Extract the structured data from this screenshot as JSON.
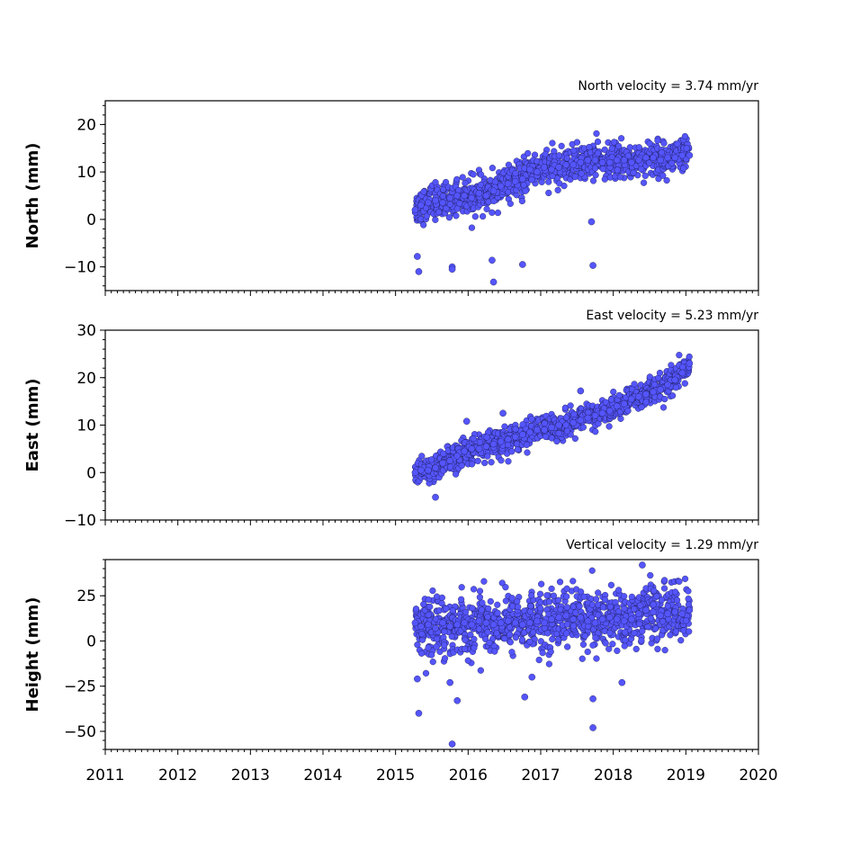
{
  "chart_data": [
    {
      "type": "scatter",
      "title": "North velocity = 3.74 mm/yr",
      "ylabel": "North (mm)",
      "ylim": [
        -15,
        25
      ],
      "xlim": [
        2011,
        2020
      ],
      "yticks": [
        -10,
        0,
        10,
        20
      ],
      "velocity_mm_per_yr": 3.74,
      "color": "#5555ff",
      "series": [
        {
          "x": [
            2015.27,
            2015.35,
            2015.45,
            2015.55,
            2015.65,
            2015.75,
            2015.85,
            2015.95,
            2016.05,
            2016.15,
            2016.25,
            2016.35,
            2016.45,
            2016.55,
            2016.65,
            2016.75,
            2016.85,
            2016.95,
            2017.05,
            2017.15,
            2017.25,
            2017.35,
            2017.45,
            2017.55,
            2017.65,
            2017.75,
            2017.85,
            2017.95,
            2018.05,
            2018.15,
            2018.25,
            2018.35,
            2018.45,
            2018.55,
            2018.65,
            2018.75,
            2018.85,
            2018.95,
            2019.05,
            2015.3,
            2015.32,
            2015.78,
            2015.78,
            2016.33,
            2016.35,
            2016.75,
            2017.7,
            2017.72
          ],
          "y": [
            2.0,
            3.0,
            3.5,
            4.0,
            3.5,
            4.5,
            5.0,
            5.0,
            4.5,
            5.5,
            5.0,
            6.0,
            7.0,
            7.5,
            8.0,
            8.5,
            10.5,
            10.0,
            11.0,
            10.5,
            11.0,
            11.5,
            11.5,
            12.0,
            12.5,
            12.5,
            12.0,
            12.0,
            12.5,
            12.5,
            12.0,
            12.5,
            13.0,
            13.0,
            12.5,
            13.0,
            13.0,
            13.5,
            13.5,
            -7.8,
            -11.0,
            -10.0,
            -10.5,
            -8.6,
            -13.2,
            -9.5,
            -0.5,
            -9.7
          ]
        }
      ]
    },
    {
      "type": "scatter",
      "title": "East velocity = 5.23 mm/yr",
      "ylabel": "East (mm)",
      "ylim": [
        -10,
        30
      ],
      "xlim": [
        2011,
        2020
      ],
      "yticks": [
        -10,
        0,
        10,
        20,
        30
      ],
      "velocity_mm_per_yr": 5.23,
      "color": "#5555ff",
      "series": [
        {
          "x": [
            2015.27,
            2015.35,
            2015.45,
            2015.55,
            2015.65,
            2015.75,
            2015.85,
            2015.95,
            2016.05,
            2016.15,
            2016.25,
            2016.35,
            2016.45,
            2016.55,
            2016.65,
            2016.75,
            2016.85,
            2016.95,
            2017.05,
            2017.15,
            2017.25,
            2017.35,
            2017.45,
            2017.55,
            2017.65,
            2017.75,
            2017.85,
            2017.95,
            2018.05,
            2018.15,
            2018.25,
            2018.35,
            2018.45,
            2018.55,
            2018.65,
            2018.75,
            2018.85,
            2018.95,
            2019.05,
            2015.55,
            2015.98,
            2016.48,
            2017.55
          ],
          "y": [
            0.0,
            0.5,
            0.5,
            1.0,
            2.0,
            2.5,
            3.5,
            4.5,
            5.0,
            5.0,
            5.5,
            6.0,
            6.5,
            7.0,
            7.5,
            8.0,
            8.5,
            9.0,
            9.0,
            9.5,
            10.0,
            10.0,
            10.5,
            11.0,
            11.5,
            12.0,
            12.5,
            13.0,
            14.0,
            14.5,
            15.5,
            16.0,
            16.5,
            17.0,
            17.5,
            18.5,
            19.5,
            21.0,
            23.0,
            -5.2,
            10.8,
            12.5,
            17.2
          ]
        }
      ]
    },
    {
      "type": "scatter",
      "title": "Vertical velocity = 1.29 mm/yr",
      "ylabel": "Height (mm)",
      "ylim": [
        -60,
        45
      ],
      "xlim": [
        2011,
        2020
      ],
      "yticks": [
        -50,
        -25,
        0,
        25
      ],
      "velocity_mm_per_yr": 1.29,
      "color": "#5555ff",
      "series": [
        {
          "x": [
            2015.27,
            2015.35,
            2015.45,
            2015.55,
            2015.65,
            2015.75,
            2015.85,
            2015.95,
            2016.05,
            2016.15,
            2016.25,
            2016.35,
            2016.45,
            2016.55,
            2016.65,
            2016.75,
            2016.85,
            2016.95,
            2017.05,
            2017.15,
            2017.25,
            2017.35,
            2017.45,
            2017.55,
            2017.65,
            2017.75,
            2017.85,
            2017.95,
            2018.05,
            2018.15,
            2018.25,
            2018.35,
            2018.45,
            2018.55,
            2018.65,
            2018.75,
            2018.85,
            2018.95,
            2019.05,
            2015.32,
            2015.3,
            2015.78,
            2015.85,
            2015.75,
            2016.78,
            2016.88,
            2017.72,
            2017.72,
            2018.12,
            2018.4
          ],
          "y": [
            10,
            8,
            9,
            7,
            10,
            8,
            9,
            10,
            9,
            11,
            10,
            9,
            10,
            11,
            10,
            9,
            10,
            11,
            10,
            12,
            13,
            14,
            12,
            13,
            11,
            10,
            12,
            13,
            12,
            11,
            12,
            15,
            17,
            16,
            14,
            15,
            16,
            15,
            17,
            -40,
            -21,
            -57,
            -33,
            -23,
            -31,
            -20,
            -32,
            -48,
            -23,
            42
          ]
        }
      ]
    }
  ],
  "x_tick_labels": [
    "2011",
    "2012",
    "2013",
    "2014",
    "2015",
    "2016",
    "2017",
    "2018",
    "2019",
    "2020"
  ]
}
